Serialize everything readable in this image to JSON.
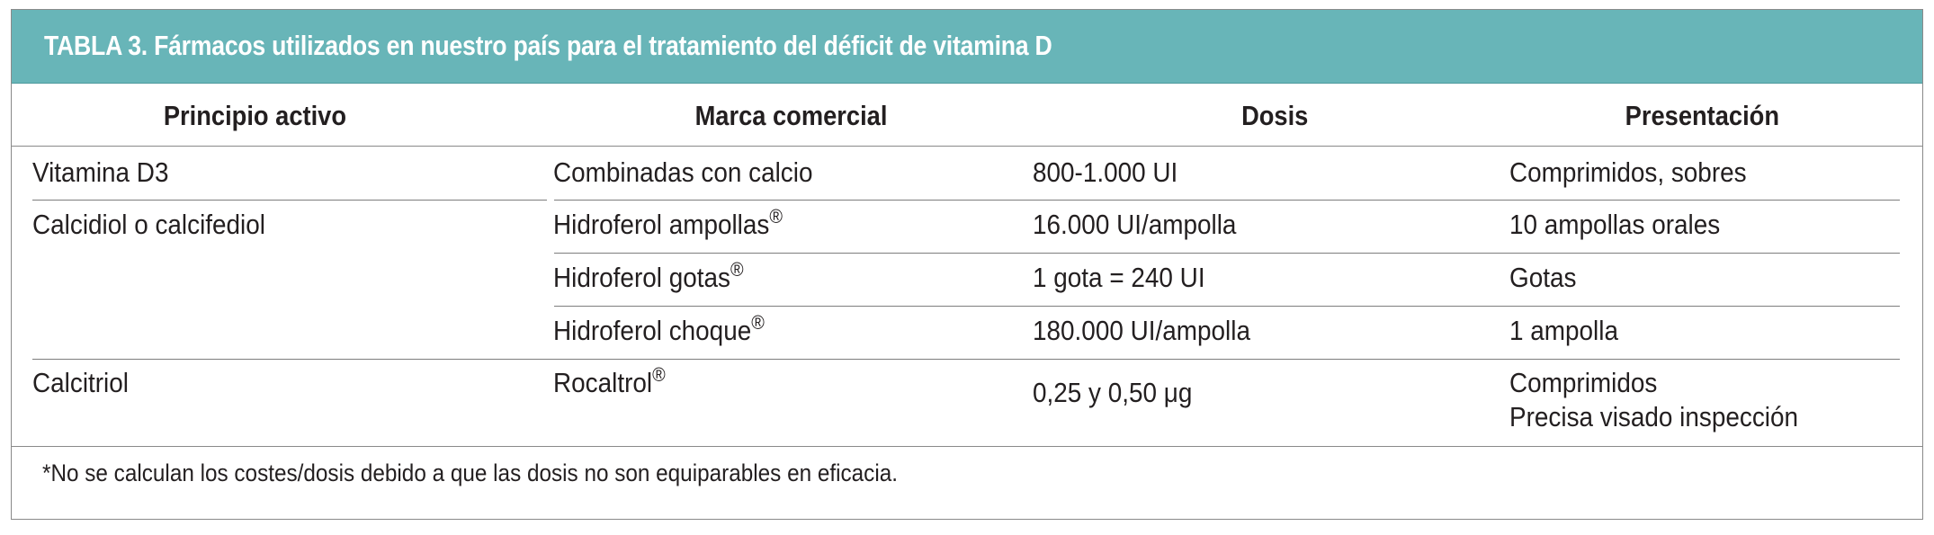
{
  "table": {
    "title": "TABLA 3. Fármacos utilizados en nuestro país para el tratamiento del déficit de vitamina D",
    "headers": [
      "Principio activo",
      "Marca comercial",
      "Dosis",
      "Presentación"
    ],
    "rows": [
      {
        "principio": "Vitamina D3",
        "marca": "Combinadas con calcio",
        "marca_reg": "",
        "dosis": "800-1.000 UI",
        "presentacion": "Comprimidos, sobres",
        "presentacion2": ""
      },
      {
        "principio": "Calcidiol o calcifediol",
        "marca": "Hidroferol ampollas",
        "marca_reg": "®",
        "dosis": "16.000 UI/ampolla",
        "presentacion": "10 ampollas orales",
        "presentacion2": ""
      },
      {
        "principio": "",
        "marca": "Hidroferol gotas",
        "marca_reg": "®",
        "dosis": "1 gota = 240 UI",
        "presentacion": "Gotas",
        "presentacion2": ""
      },
      {
        "principio": "",
        "marca": "Hidroferol choque",
        "marca_reg": "®",
        "dosis": "180.000 UI/ampolla",
        "presentacion": "1 ampolla",
        "presentacion2": ""
      },
      {
        "principio": "Calcitriol",
        "marca": "Rocaltrol",
        "marca_reg": "®",
        "dosis": "0,25 y 0,50 μg",
        "presentacion": "Comprimidos",
        "presentacion2": "Precisa visado inspección"
      }
    ],
    "footnote": "*No se calculan los costes/dosis debido a que las dosis no son equiparables en eficacia."
  },
  "colors": {
    "title_bar": "#68b5b8",
    "title_text": "#ffffff",
    "border": "#8a8a8a",
    "text": "#231f20"
  }
}
